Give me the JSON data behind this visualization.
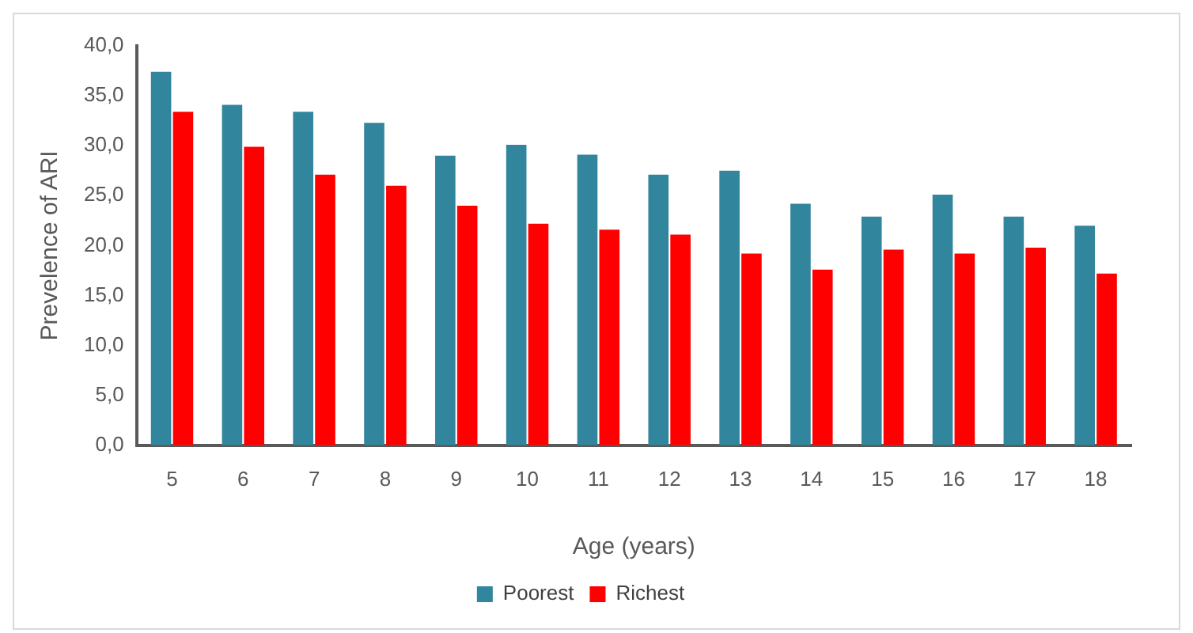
{
  "chart_data": {
    "type": "bar",
    "xlabel": "Age (years)",
    "ylabel": "Prevelence of ARI",
    "categories": [
      "5",
      "6",
      "7",
      "8",
      "9",
      "10",
      "11",
      "12",
      "13",
      "14",
      "15",
      "16",
      "17",
      "18"
    ],
    "series": [
      {
        "name": "Poorest",
        "color": "#31859c",
        "values": [
          37.4,
          34.1,
          33.4,
          32.3,
          29.0,
          30.1,
          29.1,
          27.1,
          27.5,
          24.2,
          22.9,
          25.1,
          22.9,
          22.0
        ]
      },
      {
        "name": "Richest",
        "color": "#ff0000",
        "values": [
          33.4,
          29.9,
          27.1,
          26.0,
          24.0,
          22.2,
          21.6,
          21.1,
          19.2,
          17.6,
          19.6,
          19.2,
          19.8,
          17.2
        ]
      }
    ],
    "ylim": [
      0,
      40
    ],
    "yticks": [
      {
        "value": 0,
        "label": "0,0"
      },
      {
        "value": 5,
        "label": "5,0"
      },
      {
        "value": 10,
        "label": "10,0"
      },
      {
        "value": 15,
        "label": "15,0"
      },
      {
        "value": 20,
        "label": "20,0"
      },
      {
        "value": 25,
        "label": "25,0"
      },
      {
        "value": 30,
        "label": "30,0"
      },
      {
        "value": 35,
        "label": "35,0"
      },
      {
        "value": 40,
        "label": "40,0"
      }
    ],
    "grid": false,
    "legend": "bottom"
  }
}
